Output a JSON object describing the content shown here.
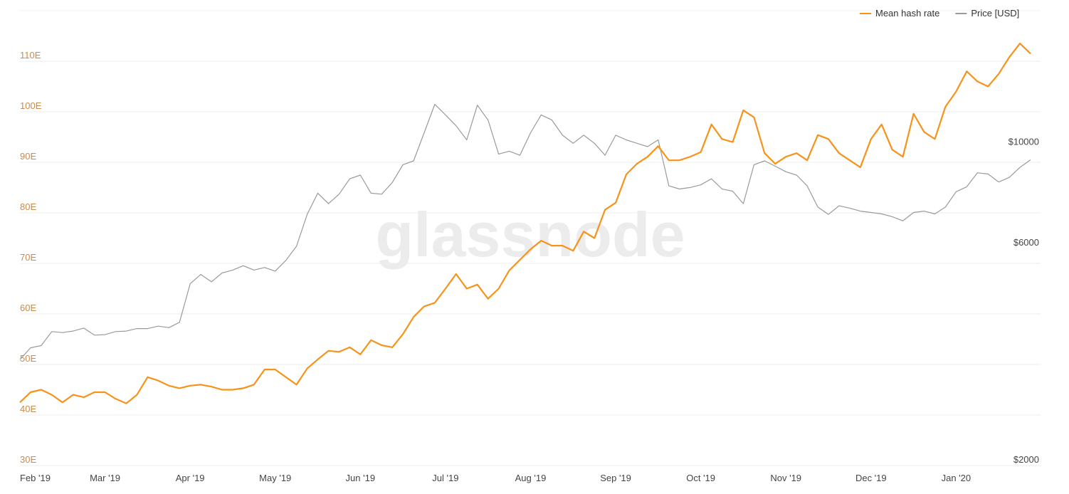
{
  "chart_data": {
    "type": "line",
    "watermark": "glassnode",
    "categories": [
      "Feb '19",
      null,
      null,
      null,
      null,
      null,
      null,
      null,
      "Mar '19",
      null,
      null,
      null,
      null,
      null,
      null,
      null,
      "Apr '19",
      null,
      null,
      null,
      null,
      null,
      null,
      null,
      "May '19",
      null,
      null,
      null,
      null,
      null,
      null,
      null,
      "Jun '19",
      null,
      null,
      null,
      null,
      null,
      null,
      null,
      "Jul '19",
      null,
      null,
      null,
      null,
      null,
      null,
      null,
      "Aug '19",
      null,
      null,
      null,
      null,
      null,
      null,
      null,
      "Sep '19",
      null,
      null,
      null,
      null,
      null,
      null,
      null,
      "Oct '19",
      null,
      null,
      null,
      null,
      null,
      null,
      null,
      "Nov '19",
      null,
      null,
      null,
      null,
      null,
      null,
      null,
      "Dec '19",
      null,
      null,
      null,
      null,
      null,
      null,
      null,
      "Jan '20",
      null,
      null,
      null,
      null,
      null,
      null,
      null
    ],
    "series": [
      {
        "name": "Mean hash rate",
        "color": "#f7931a",
        "values": [
          42.5,
          44.5,
          45,
          44,
          42.5,
          44,
          43.5,
          44.5,
          44.5,
          43.2,
          42.3,
          44,
          47.5,
          46.8,
          45.8,
          45.3,
          45.8,
          46,
          45.6,
          45,
          45,
          45.3,
          46,
          49,
          49,
          47.5,
          46,
          49.2,
          51,
          52.7,
          52.5,
          53.4,
          52,
          54.8,
          53.8,
          53.4,
          56,
          59.4,
          61.5,
          62.2,
          65,
          67.9,
          65,
          65.8,
          63,
          65,
          68.6,
          70.7,
          72.8,
          74.5,
          73.5,
          73.5,
          72.5,
          76.3,
          75,
          80.6,
          82,
          87.6,
          89.7,
          91.1,
          93.2,
          90.4,
          90.4,
          91.1,
          92,
          97.5,
          94.6,
          94,
          100.3,
          98.9,
          91.8,
          89.7,
          91.1,
          91.8,
          90.4,
          95.4,
          94.6,
          91.8,
          90.4,
          89,
          94.6,
          97.5,
          92.5,
          91.1,
          99.6,
          96,
          94.6,
          101,
          104,
          108,
          106,
          105,
          107.5,
          110.8,
          113.5,
          111.5
        ]
      },
      {
        "name": "Price [USD]",
        "color": "#9a9a9a",
        "axis": "y2",
        "values": [
          3420,
          3630,
          3670,
          3940,
          3920,
          3950,
          4010,
          3870,
          3880,
          3940,
          3950,
          4000,
          4000,
          4050,
          4020,
          4130,
          5020,
          5260,
          5070,
          5300,
          5380,
          5500,
          5380,
          5450,
          5350,
          5650,
          6070,
          7130,
          7940,
          7530,
          7900,
          8540,
          8700,
          7940,
          7900,
          8380,
          9170,
          9350,
          10780,
          12450,
          11800,
          11170,
          10400,
          12400,
          11500,
          9680,
          9820,
          9620,
          10780,
          11800,
          11500,
          10650,
          10220,
          10650,
          10220,
          9620,
          10650,
          10400,
          10220,
          10050,
          10400,
          8240,
          8110,
          8170,
          8280,
          8540,
          8110,
          8020,
          7530,
          9170,
          9350,
          9100,
          8850,
          8700,
          8240,
          7400,
          7130,
          7450,
          7360,
          7250,
          7200,
          7150,
          7050,
          6900,
          7200,
          7250,
          7150,
          7400,
          8000,
          8200,
          8800,
          8750,
          8400,
          8600,
          9050,
          9400
        ]
      }
    ],
    "ylim": [
      30,
      120
    ],
    "yticks": [
      {
        "value": 30,
        "label": "30E"
      },
      {
        "value": 40,
        "label": "40E"
      },
      {
        "value": 50,
        "label": "50E"
      },
      {
        "value": 60,
        "label": "60E"
      },
      {
        "value": 70,
        "label": "70E"
      },
      {
        "value": 80,
        "label": "80E"
      },
      {
        "value": 90,
        "label": "90E"
      },
      {
        "value": 100,
        "label": "100E"
      },
      {
        "value": 110,
        "label": "110E"
      }
    ],
    "y2lim": [
      2000,
      20000
    ],
    "y2scale": "log",
    "y2ticks": [
      {
        "value": 2000,
        "label": "$2000"
      },
      {
        "value": 6000,
        "label": "$6000"
      },
      {
        "value": 10000,
        "label": "$10000"
      }
    ],
    "grid": true,
    "legend": "top-right"
  }
}
